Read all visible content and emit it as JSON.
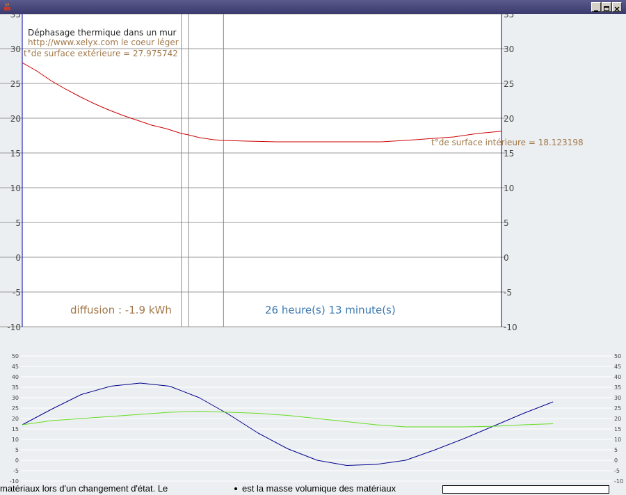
{
  "window": {
    "title": "",
    "min_icon": "minimize-icon",
    "max_icon": "maximize-icon",
    "close_icon": "close-icon"
  },
  "chart_data": [
    {
      "type": "line",
      "title": "Déphasage thermique dans un mur",
      "subtitle": "http://www.xelyx.com   le coeur léger",
      "surface_ext_label": "t°de surface extérieure    = 27.975742",
      "surface_int_label": "t°de surface intérieure = 18.123198",
      "diffusion_label": "diffusion : -1.9 kWh",
      "time_label": "26 heure(s) 13 minute(s)",
      "ylim": [
        -10,
        35
      ],
      "yticks": [
        -10,
        -5,
        0,
        5,
        10,
        15,
        20,
        25,
        30,
        35
      ],
      "xlim": [
        0,
        100
      ],
      "grid": true,
      "layer_boundaries": [
        33.2,
        34.7,
        42
      ],
      "series": [
        {
          "name": "",
          "color": "#cc0000",
          "x": [
            0,
            3,
            6,
            9,
            12,
            15,
            18,
            21,
            24,
            27,
            30,
            33.2,
            34.7,
            37,
            40,
            42,
            47,
            53,
            60,
            67,
            75,
            82,
            90,
            95,
            100
          ],
          "values": [
            27.98,
            26.8,
            25.4,
            24.2,
            23.1,
            22.1,
            21.2,
            20.4,
            19.7,
            19.0,
            18.5,
            17.8,
            17.6,
            17.2,
            16.9,
            16.8,
            16.7,
            16.6,
            16.6,
            16.6,
            16.6,
            16.9,
            17.3,
            17.8,
            18.12
          ]
        }
      ]
    },
    {
      "type": "line",
      "ylim": [
        -10,
        50
      ],
      "yticks": [
        -10,
        -5,
        0,
        5,
        10,
        15,
        20,
        25,
        30,
        35,
        40,
        45,
        50
      ],
      "xlim": [
        0,
        100
      ],
      "grid": true,
      "series": [
        {
          "name": "",
          "color": "#00008b",
          "x": [
            0,
            5,
            10,
            15,
            20,
            25,
            30,
            35,
            40,
            45,
            50,
            55,
            60,
            65,
            70,
            75,
            80,
            85,
            90
          ],
          "values": [
            17,
            24.5,
            31.5,
            35.5,
            37,
            35.5,
            30,
            22,
            13,
            5.5,
            0,
            -2.5,
            -2,
            0,
            5,
            10.5,
            16.5,
            22.5,
            28
          ]
        },
        {
          "name": "",
          "color": "#66dd22",
          "x": [
            0,
            5,
            10,
            15,
            20,
            25,
            30,
            35,
            40,
            45,
            50,
            55,
            60,
            65,
            70,
            75,
            80,
            85,
            90
          ],
          "values": [
            17,
            19,
            20,
            21,
            22,
            23,
            23.5,
            23,
            22.5,
            21.5,
            20,
            18.5,
            17,
            16,
            16,
            16,
            16.3,
            17,
            17.5
          ]
        }
      ]
    }
  ],
  "background": {
    "text_left": "matériaux lors d'un changement d'état. Le",
    "text_right": "est la masse volumique des matériaux"
  }
}
